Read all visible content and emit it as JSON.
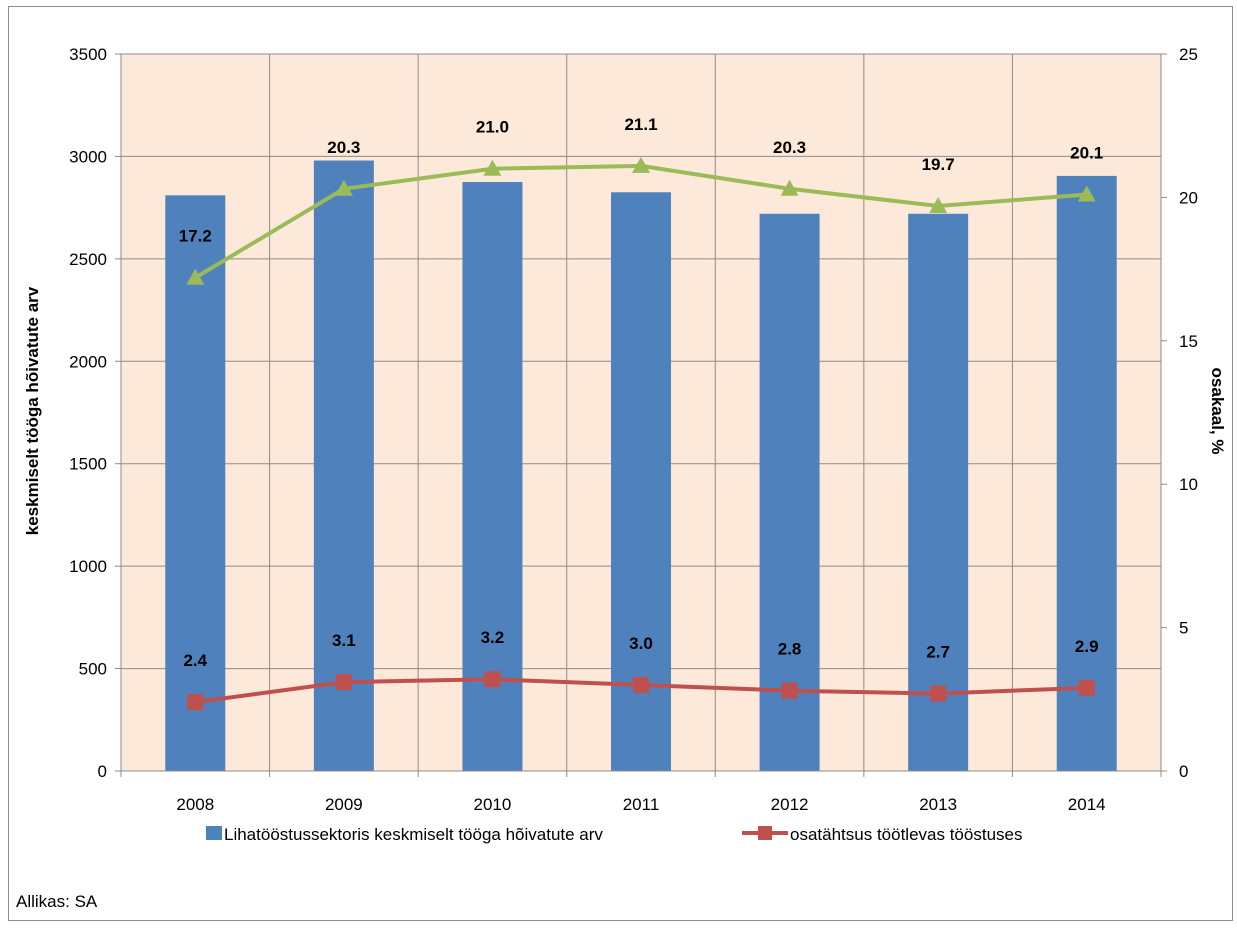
{
  "chart_data": {
    "type": "bar",
    "categories": [
      "2008",
      "2009",
      "2010",
      "2011",
      "2012",
      "2013",
      "2014"
    ],
    "series": [
      {
        "name": "Lihatööstussektoris keskmiselt tööga hõivatute arv",
        "type": "bar",
        "axis": "left",
        "color": "#4f81bd",
        "values": [
          2810,
          2980,
          2875,
          2825,
          2720,
          2720,
          2905
        ]
      },
      {
        "name": "osatähtsus töötlevas tööstuses",
        "type": "line",
        "axis": "right",
        "color": "#c0504d",
        "marker": "square",
        "values": [
          2.4,
          3.1,
          3.2,
          3.0,
          2.8,
          2.7,
          2.9
        ],
        "labels": [
          "2.4",
          "3.1",
          "3.2",
          "3.0",
          "2.8",
          "2.7",
          "2.9"
        ]
      },
      {
        "type": "line",
        "axis": "right",
        "color": "#9bbb59",
        "marker": "triangle",
        "show_in_legend": false,
        "values": [
          17.2,
          20.3,
          21.0,
          21.1,
          20.3,
          19.7,
          20.1
        ],
        "labels": [
          "17.2",
          "20.3",
          "21.0",
          "21.1",
          "20.3",
          "19.7",
          "20.1"
        ]
      }
    ],
    "ylabel": "keskmiselt tööga hõivatute arv",
    "y2label": "osakaal, %",
    "ylim": [
      0,
      3500
    ],
    "y2lim": [
      0,
      25
    ],
    "yticks": [
      "0",
      "500",
      "1000",
      "1500",
      "2000",
      "2500",
      "3000",
      "3500"
    ],
    "y2ticks": [
      "0",
      "5",
      "10",
      "15",
      "20",
      "25"
    ],
    "grid": true,
    "plot_background": "#fde9d9",
    "legend_position": "bottom",
    "source_note": "Allikas: SA"
  }
}
